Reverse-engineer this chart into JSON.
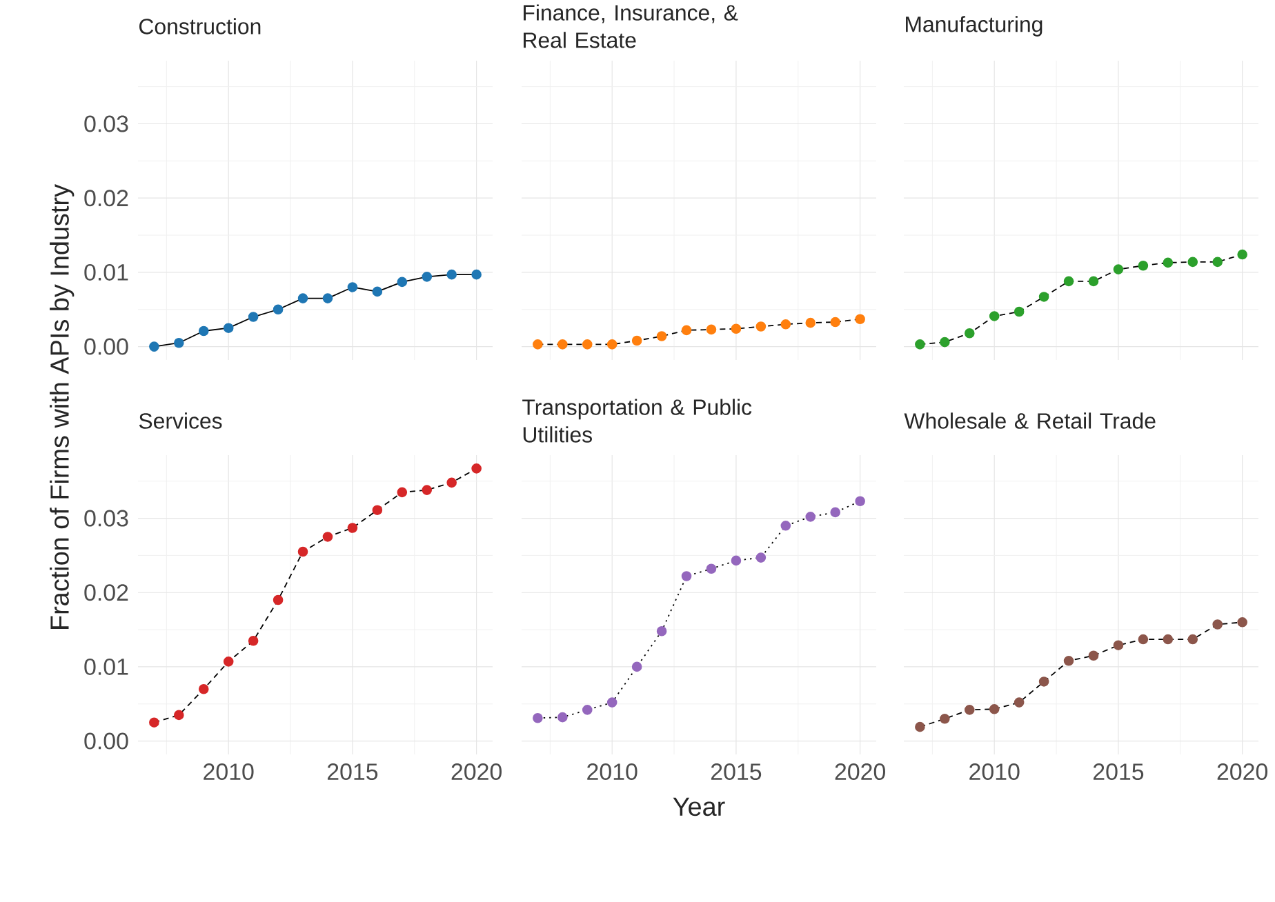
{
  "chart_data": [
    {
      "type": "line",
      "title": "Construction",
      "x": [
        2007,
        2008,
        2009,
        2010,
        2011,
        2012,
        2013,
        2014,
        2015,
        2016,
        2017,
        2018,
        2019,
        2020
      ],
      "color": "#1f77b4",
      "line_style": "solid",
      "marker": "circle",
      "grid": true,
      "tick_labels": "y",
      "values": [
        0.0,
        0.0005,
        0.0021,
        0.0025,
        0.004,
        0.005,
        0.0065,
        0.0065,
        0.008,
        0.0074,
        0.0087,
        0.0094,
        0.0097,
        0.0097
      ],
      "xlim": [
        2006.35,
        2020.65
      ],
      "ylim": [
        -0.0018,
        0.0385
      ],
      "xticks": [
        2010,
        2015,
        2020
      ],
      "yticks": [
        {
          "value": 0,
          "label": "0.00"
        },
        {
          "value": 0.01,
          "label": "0.01"
        },
        {
          "value": 0.02,
          "label": "0.02"
        },
        {
          "value": 0.03,
          "label": "0.03"
        }
      ]
    },
    {
      "type": "line",
      "title": "Finance, Insurance, & Real Estate",
      "x": [
        2007,
        2008,
        2009,
        2010,
        2011,
        2012,
        2013,
        2014,
        2015,
        2016,
        2017,
        2018,
        2019,
        2020
      ],
      "color": "#ff7f0e",
      "line_style": "dashed",
      "marker": "circle",
      "grid": true,
      "tick_labels": false,
      "values": [
        0.0003,
        0.0003,
        0.0003,
        0.0003,
        0.0008,
        0.0014,
        0.0022,
        0.0023,
        0.0024,
        0.0027,
        0.003,
        0.0032,
        0.0033,
        0.0037
      ],
      "xlim": [
        2006.35,
        2020.65
      ],
      "ylim": [
        -0.0018,
        0.0385
      ],
      "xticks": [
        2010,
        2015,
        2020
      ],
      "yticks": [
        0,
        0.01,
        0.02,
        0.03
      ]
    },
    {
      "type": "line",
      "title": "Manufacturing",
      "x": [
        2007,
        2008,
        2009,
        2010,
        2011,
        2012,
        2013,
        2014,
        2015,
        2016,
        2017,
        2018,
        2019,
        2020
      ],
      "color": "#2ca02c",
      "line_style": "dashed",
      "marker": "circle",
      "grid": true,
      "tick_labels": false,
      "values": [
        0.0003,
        0.0006,
        0.0018,
        0.0041,
        0.0047,
        0.0067,
        0.0088,
        0.0088,
        0.0104,
        0.0109,
        0.0113,
        0.0114,
        0.0114,
        0.0124
      ],
      "xlim": [
        2006.35,
        2020.65
      ],
      "ylim": [
        -0.0018,
        0.0385
      ],
      "xticks": [
        2010,
        2015,
        2020
      ],
      "yticks": [
        0,
        0.01,
        0.02,
        0.03
      ]
    },
    {
      "type": "line",
      "title": "Services",
      "ylabel": "Fraction of Firms with APIs by Industry",
      "x": [
        2007,
        2008,
        2009,
        2010,
        2011,
        2012,
        2013,
        2014,
        2015,
        2016,
        2017,
        2018,
        2019,
        2020
      ],
      "color": "#d62728",
      "line_style": "dashed",
      "marker": "circle",
      "grid": true,
      "values": [
        0.0025,
        0.0035,
        0.007,
        0.0107,
        0.0135,
        0.019,
        0.0255,
        0.0275,
        0.0287,
        0.0311,
        0.0335,
        0.0338,
        0.0348,
        0.0367
      ],
      "xlim": [
        2006.35,
        2020.65
      ],
      "ylim": [
        -0.0018,
        0.0385
      ],
      "xticks": [
        2010,
        2015,
        2020
      ],
      "yticks": [
        {
          "value": 0,
          "label": "0.00"
        },
        {
          "value": 0.01,
          "label": "0.01"
        },
        {
          "value": 0.02,
          "label": "0.02"
        },
        {
          "value": 0.03,
          "label": "0.03"
        }
      ]
    },
    {
      "type": "line",
      "title": "Transportation & Public Utilities",
      "xlabel": "Year",
      "x": [
        2007,
        2008,
        2009,
        2010,
        2011,
        2012,
        2013,
        2014,
        2015,
        2016,
        2017,
        2018,
        2019,
        2020
      ],
      "color": "#9467bd",
      "line_style": "dotted",
      "marker": "circle",
      "grid": true,
      "tick_labels": "x",
      "values": [
        0.0031,
        0.0032,
        0.0042,
        0.0052,
        0.01,
        0.0148,
        0.0222,
        0.0232,
        0.0243,
        0.0247,
        0.029,
        0.0302,
        0.0308,
        0.0323
      ],
      "xlim": [
        2006.35,
        2020.65
      ],
      "ylim": [
        -0.0018,
        0.0385
      ],
      "xticks": [
        2010,
        2015,
        2020
      ],
      "yticks": [
        0,
        0.01,
        0.02,
        0.03
      ]
    },
    {
      "type": "line",
      "title": "Wholesale & Retail Trade",
      "x": [
        2007,
        2008,
        2009,
        2010,
        2011,
        2012,
        2013,
        2014,
        2015,
        2016,
        2017,
        2018,
        2019,
        2020
      ],
      "color": "#8c564b",
      "line_style": "dashed",
      "marker": "circle",
      "grid": true,
      "tick_labels": "x",
      "values": [
        0.0019,
        0.003,
        0.0042,
        0.0043,
        0.0052,
        0.008,
        0.0108,
        0.0115,
        0.0129,
        0.0137,
        0.0137,
        0.0137,
        0.0157,
        0.016
      ],
      "xlim": [
        2006.35,
        2020.65
      ],
      "ylim": [
        -0.0018,
        0.0385
      ],
      "xticks": [
        2010,
        2015,
        2020
      ],
      "yticks": [
        0,
        0.01,
        0.02,
        0.03
      ]
    }
  ]
}
